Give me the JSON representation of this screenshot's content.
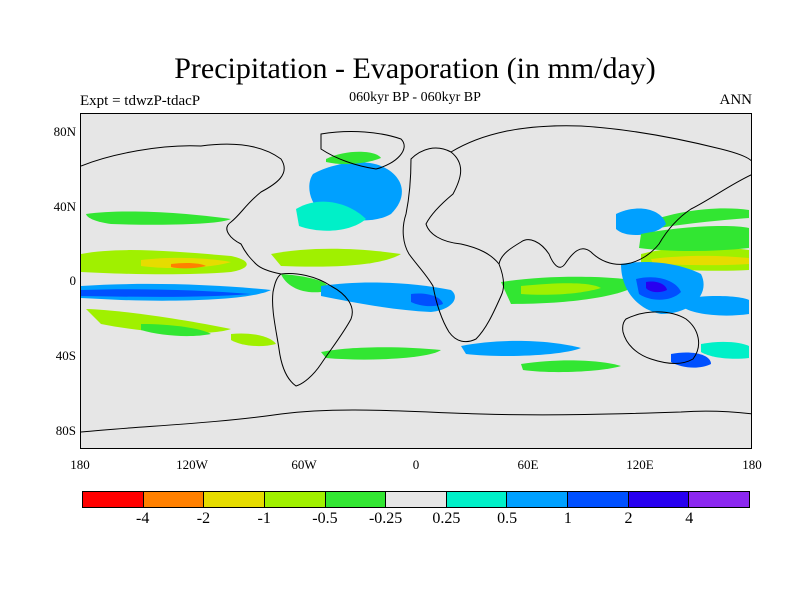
{
  "title": "Precipitation - Evaporation (in mm/day)",
  "subtitle": "060kyr BP - 060kyr BP",
  "left_label": "Expt = tdwzP-tdacP",
  "right_label": "ANN",
  "y_axis_labels": [
    "80N",
    "40N",
    "0",
    "40S",
    "80S"
  ],
  "x_axis_labels": [
    "180",
    "120W",
    "60W",
    "0",
    "60E",
    "120E",
    "180"
  ],
  "colorbar": {
    "colors": [
      "#ff0000",
      "#ff8000",
      "#e6dc00",
      "#a0f000",
      "#32e632",
      "#e6e6e6",
      "#00f0c8",
      "#00a0ff",
      "#0050ff",
      "#2800f0",
      "#8c28f0"
    ],
    "labels": [
      "-4",
      "-2",
      "-1",
      "-0.5",
      "-0.25",
      "0.25",
      "0.5",
      "1",
      "2",
      "4"
    ]
  },
  "colors": {
    "land": "#e6e6e6",
    "coast": "#000000"
  }
}
